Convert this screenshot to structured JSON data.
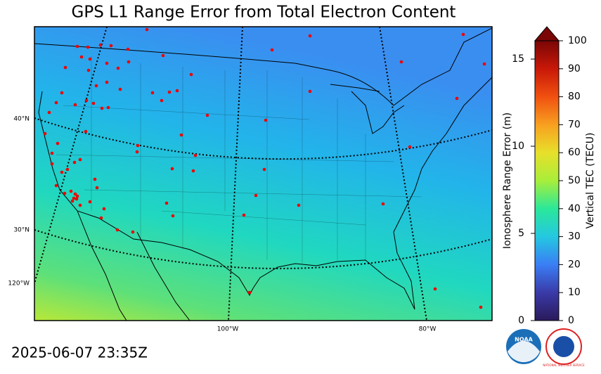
{
  "title": "GPS L1 Range Error from Total Electron Content",
  "timestamp": "2025-06-07 23:35Z",
  "map": {
    "lat_labels": [
      "40°N",
      "30°N"
    ],
    "lon_labels": [
      "120°W",
      "100°W",
      "80°W"
    ]
  },
  "colorbar": {
    "left_label": "Ionosphere Range Error (m)",
    "left_lim": [
      0,
      16.05
    ],
    "left_ticks": [
      0,
      5,
      10,
      15
    ],
    "right_label": "Vertical TEC (TECU)",
    "right_lim": [
      0,
      100
    ],
    "right_ticks": [
      0,
      10,
      20,
      30,
      40,
      50,
      60,
      70,
      80,
      90,
      100
    ]
  },
  "logos": {
    "noaa": "NOAA",
    "nws": "NATIONAL WEATHER SERVICE"
  }
}
